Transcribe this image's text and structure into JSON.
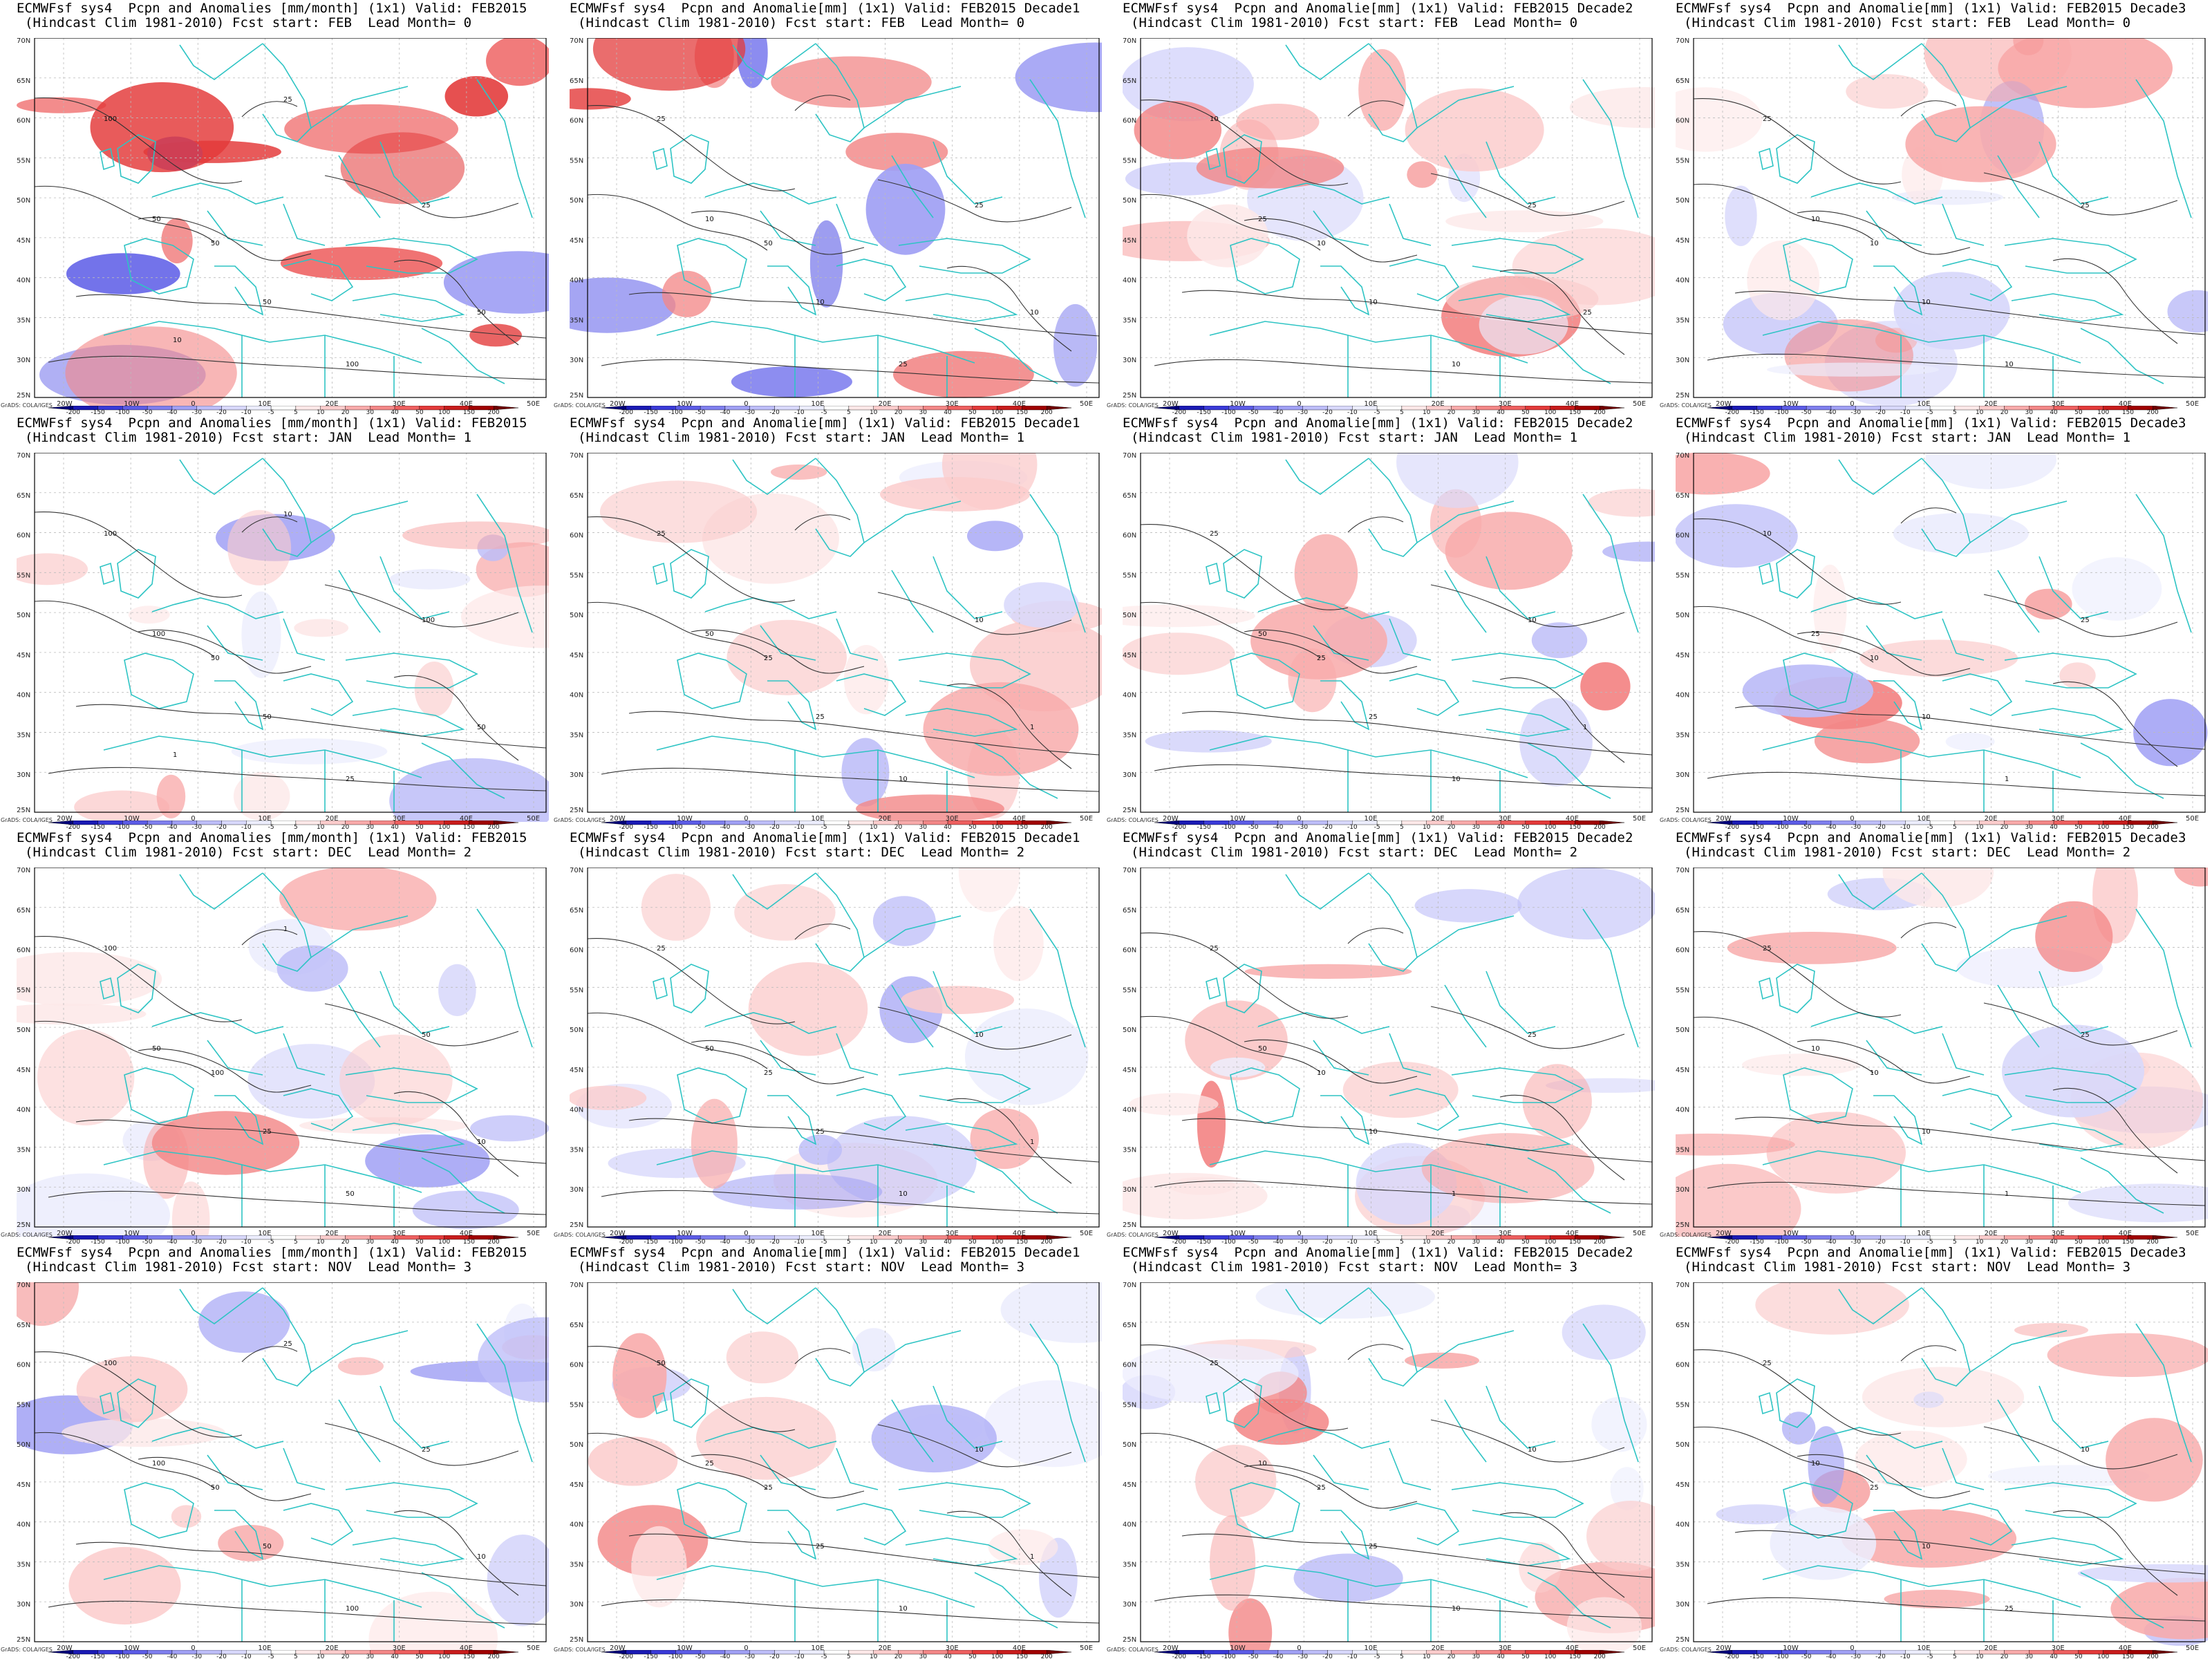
{
  "figure": {
    "credit": "GrADS: COLA/IGES",
    "colors": {
      "coast": "#2ec4c4",
      "contour": "#333333",
      "grid_line": "#bbbbbb"
    },
    "map_x_ticks": [
      "20W",
      "10W",
      "0",
      "10E",
      "20E",
      "30E",
      "40E",
      "50E"
    ],
    "map_y_ticks": [
      "70N",
      "65N",
      "60N",
      "55N",
      "50N",
      "45N",
      "40N",
      "35N",
      "30N",
      "25N"
    ],
    "colorbar": {
      "labels": [
        "-200",
        "-150",
        "-100",
        "-50",
        "-40",
        "-30",
        "-20",
        "-10",
        "-5",
        "5",
        "10",
        "20",
        "30",
        "40",
        "50",
        "100",
        "150",
        "200"
      ],
      "colors": [
        "#00007a",
        "#1a1ab4",
        "#3a3ad8",
        "#5c5ce6",
        "#7f7fee",
        "#a0a0f4",
        "#bdbdf8",
        "#d8d8fb",
        "#ecedfd",
        "#ffffff",
        "#fde8e8",
        "#fbcccc",
        "#f8aaaa",
        "#f38787",
        "#ee6060",
        "#e33a3a",
        "#c81c1c",
        "#a00000",
        "#700000"
      ]
    }
  },
  "panels": [
    {
      "title1": "ECMWFsf sys4  Pcpn and Anomalies [mm/month] (1x1) Valid: FEB2015",
      "title2": "(Hindcast Clim 1981-2010) Fcst start: FEB  Lead Month= 0",
      "contour_labels": [
        "100",
        "50",
        "50",
        "25",
        "50",
        "100",
        "50",
        "25",
        "10"
      ]
    },
    {
      "title1": "ECMWFsf sys4  Pcpn and Anomalie[mm] (1x1) Valid: FEB2015 Decade1",
      "title2": "(Hindcast Clim 1981-2010) Fcst start: FEB  Lead Month= 0",
      "contour_labels": [
        "25",
        "10",
        "50",
        "25",
        "10",
        "25",
        "10"
      ]
    },
    {
      "title1": "ECMWFsf sys4  Pcpn and Anomalie[mm] (1x1) Valid: FEB2015 Decade2",
      "title2": "(Hindcast Clim 1981-2010) Fcst start: FEB  Lead Month= 0",
      "contour_labels": [
        "10",
        "25",
        "10",
        "25",
        "10",
        "10",
        "25"
      ]
    },
    {
      "title1": "ECMWFsf sys4  Pcpn and Anomalie[mm] (1x1) Valid: FEB2015 Decade3",
      "title2": "(Hindcast Clim 1981-2010) Fcst start: FEB  Lead Month= 0",
      "contour_labels": [
        "25",
        "10",
        "10",
        "25",
        "10",
        "10"
      ]
    },
    {
      "title1": "ECMWFsf sys4  Pcpn and Anomalies [mm/month] (1x1) Valid: FEB2015",
      "title2": "(Hindcast Clim 1981-2010) Fcst start: JAN  Lead Month= 1",
      "contour_labels": [
        "100",
        "100",
        "50",
        "100",
        "50",
        "25",
        "50",
        "10",
        "1"
      ]
    },
    {
      "title1": "ECMWFsf sys4  Pcpn and Anomalie[mm] (1x1) Valid: FEB2015 Decade1",
      "title2": "(Hindcast Clim 1981-2010) Fcst start: JAN  Lead Month= 1",
      "contour_labels": [
        "25",
        "50",
        "25",
        "10",
        "25",
        "10",
        "1"
      ]
    },
    {
      "title1": "ECMWFsf sys4  Pcpn and Anomalie[mm] (1x1) Valid: FEB2015 Decade2",
      "title2": "(Hindcast Clim 1981-2010) Fcst start: JAN  Lead Month= 1",
      "contour_labels": [
        "25",
        "50",
        "25",
        "10",
        "25",
        "10",
        "1"
      ]
    },
    {
      "title1": "ECMWFsf sys4  Pcpn and Anomalie[mm] (1x1) Valid: FEB2015 Decade3",
      "title2": "(Hindcast Clim 1981-2010) Fcst start: JAN  Lead Month= 1",
      "contour_labels": [
        "10",
        "25",
        "10",
        "25",
        "10",
        "1"
      ]
    },
    {
      "title1": "ECMWFsf sys4  Pcpn and Anomalies [mm/month] (1x1) Valid: FEB2015",
      "title2": "(Hindcast Clim 1981-2010) Fcst start: DEC  Lead Month= 2",
      "contour_labels": [
        "100",
        "50",
        "100",
        "50",
        "25",
        "50",
        "10",
        "1"
      ]
    },
    {
      "title1": "ECMWFsf sys4  Pcpn and Anomalie[mm] (1x1) Valid: FEB2015 Decade1",
      "title2": "(Hindcast Clim 1981-2010) Fcst start: DEC  Lead Month= 2",
      "contour_labels": [
        "25",
        "50",
        "25",
        "10",
        "25",
        "10",
        "1"
      ]
    },
    {
      "title1": "ECMWFsf sys4  Pcpn and Anomalie[mm] (1x1) Valid: FEB2015 Decade2",
      "title2": "(Hindcast Clim 1981-2010) Fcst start: DEC  Lead Month= 2",
      "contour_labels": [
        "25",
        "50",
        "10",
        "25",
        "10",
        "1"
      ]
    },
    {
      "title1": "ECMWFsf sys4  Pcpn and Anomalie[mm] (1x1) Valid: FEB2015 Decade3",
      "title2": "(Hindcast Clim 1981-2010) Fcst start: DEC  Lead Month= 2",
      "contour_labels": [
        "25",
        "10",
        "10",
        "25",
        "10",
        "1"
      ]
    },
    {
      "title1": "ECMWFsf sys4  Pcpn and Anomalies [mm/month] (1x1) Valid: FEB2015",
      "title2": "(Hindcast Clim 1981-2010) Fcst start: NOV  Lead Month= 3",
      "contour_labels": [
        "100",
        "100",
        "50",
        "25",
        "50",
        "100",
        "10",
        "25"
      ]
    },
    {
      "title1": "ECMWFsf sys4  Pcpn and Anomalie[mm] (1x1) Valid: FEB2015 Decade1",
      "title2": "(Hindcast Clim 1981-2010) Fcst start: NOV  Lead Month= 3",
      "contour_labels": [
        "50",
        "25",
        "25",
        "10",
        "25",
        "10",
        "1"
      ]
    },
    {
      "title1": "ECMWFsf sys4  Pcpn and Anomalie[mm] (1x1) Valid: FEB2015 Decade2",
      "title2": "(Hindcast Clim 1981-2010) Fcst start: NOV  Lead Month= 3",
      "contour_labels": [
        "25",
        "10",
        "25",
        "10",
        "25",
        "10"
      ]
    },
    {
      "title1": "ECMWFsf sys4  Pcpn and Anomalie[mm] (1x1) Valid: FEB2015 Decade3",
      "title2": "(Hindcast Clim 1981-2010) Fcst start: NOV  Lead Month= 3",
      "contour_labels": [
        "25",
        "10",
        "25",
        "10",
        "10",
        "25"
      ]
    }
  ]
}
